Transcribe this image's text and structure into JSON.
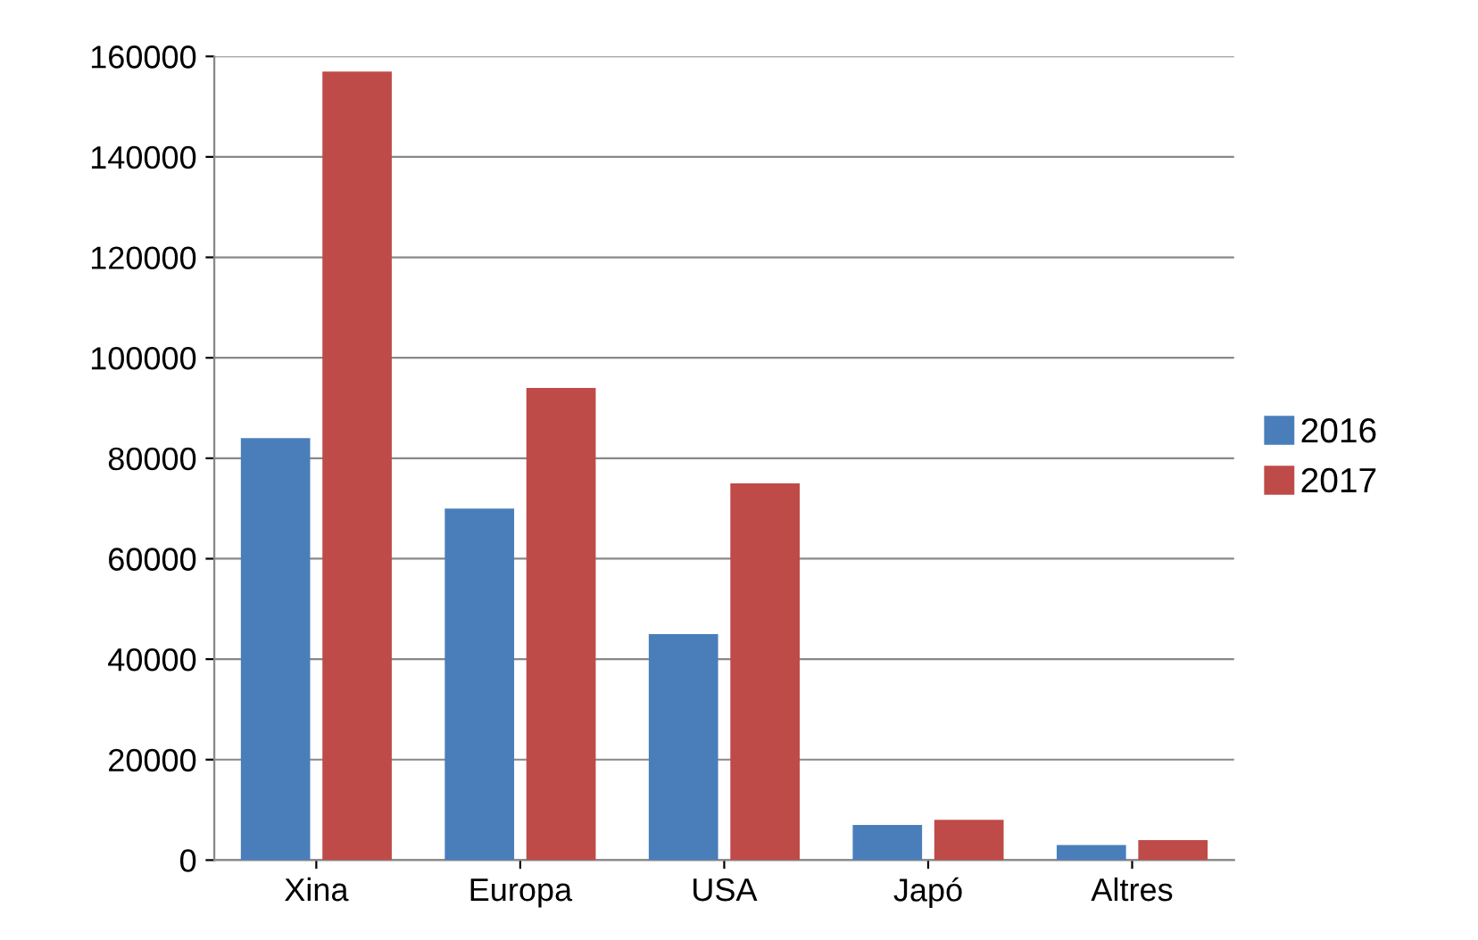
{
  "chart_data": {
    "type": "bar",
    "categories": [
      "Xina",
      "Europa",
      "USA",
      "Japó",
      "Altres"
    ],
    "series": [
      {
        "name": "2016",
        "color": "#4a7ebb",
        "values": [
          84000,
          70000,
          45000,
          7000,
          3000
        ]
      },
      {
        "name": "2017",
        "color": "#be4b48",
        "values": [
          157000,
          94000,
          75000,
          8000,
          4000
        ]
      }
    ],
    "ylim": [
      0,
      160000
    ],
    "yticks": [
      0,
      20000,
      40000,
      60000,
      80000,
      100000,
      120000,
      140000,
      160000
    ],
    "grid": "y",
    "legend": "right"
  }
}
